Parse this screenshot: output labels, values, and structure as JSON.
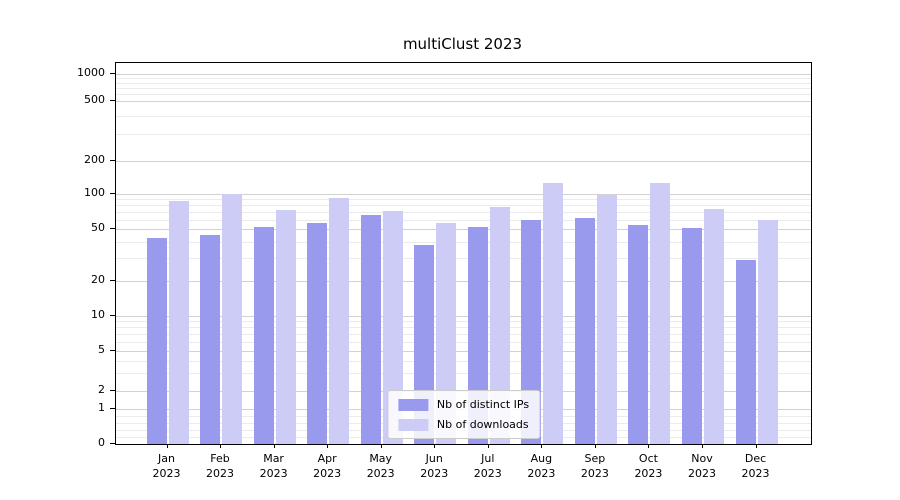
{
  "chart_data": {
    "type": "bar",
    "title": "multiClust 2023",
    "categories": [
      "Jan",
      "Feb",
      "Mar",
      "Apr",
      "May",
      "Jun",
      "Jul",
      "Aug",
      "Sep",
      "Oct",
      "Nov",
      "Dec"
    ],
    "year_label": "2023",
    "series": [
      {
        "name": "Nb of distinct IPs",
        "color": "#9999ee",
        "values": [
          43,
          45,
          52,
          56,
          66,
          38,
          52,
          60,
          62,
          54,
          51,
          29
        ]
      },
      {
        "name": "Nb of downloads",
        "color": "#ccccf7",
        "values": [
          88,
          100,
          73,
          92,
          72,
          56,
          77,
          127,
          98,
          125,
          74,
          60
        ]
      }
    ],
    "y_ticks": [
      0,
      1,
      2,
      5,
      10,
      20,
      50,
      100,
      200,
      500,
      1000
    ],
    "y_scale": "symlog",
    "ylim": [
      0,
      1100
    ],
    "grid": true,
    "legend_position": "lower center"
  }
}
